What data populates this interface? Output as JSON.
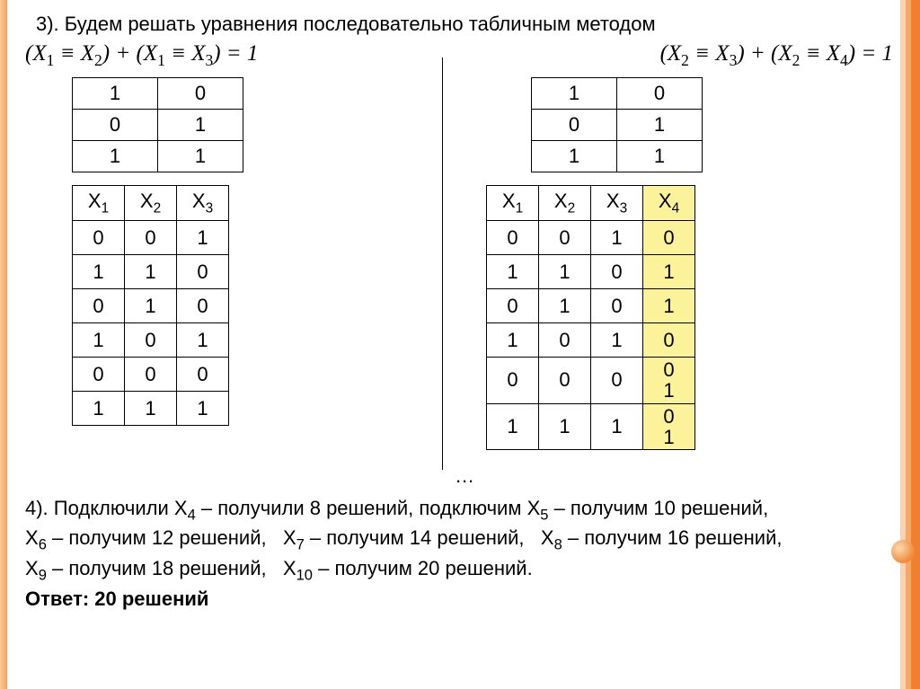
{
  "title": "3). Будем решать уравнения последовательно табличным методом",
  "formula_left": "( X₁ ≡ X₂ ) + ( X₁ ≡ X₃ ) = 1",
  "formula_right": "( X₂ ≡ X₃ ) + ( X₂ ≡ X₄ ) = 1",
  "small_table": {
    "rows": [
      [
        "1",
        "0"
      ],
      [
        "0",
        "1"
      ],
      [
        "1",
        "1"
      ]
    ]
  },
  "left_big": {
    "headers": [
      "X1",
      "X2",
      "X3"
    ],
    "rows": [
      [
        "0",
        "0",
        "1"
      ],
      [
        "1",
        "1",
        "0"
      ],
      [
        "0",
        "1",
        "0"
      ],
      [
        "1",
        "0",
        "1"
      ],
      [
        "0",
        "0",
        "0"
      ],
      [
        "1",
        "1",
        "1"
      ]
    ]
  },
  "right_big": {
    "headers": [
      "X1",
      "X2",
      "X3",
      "X4"
    ],
    "highlight_col": 3,
    "rows": [
      [
        "0",
        "0",
        "1",
        "0"
      ],
      [
        "1",
        "1",
        "0",
        "1"
      ],
      [
        "0",
        "1",
        "0",
        "1"
      ],
      [
        "1",
        "0",
        "1",
        "0"
      ],
      [
        "0",
        "0",
        "0",
        "0\n1"
      ],
      [
        "1",
        "1",
        "1",
        "0\n1"
      ]
    ]
  },
  "ellipsis": "…",
  "para1": "4). Подключили X₄ – получили 8 решений, подключим X₅ – получим 10 решений,",
  "para2": "X₆ – получим 12 решений,   X₇ – получим 14 решений,   X₈ – получим 16 решений,",
  "para3": "X₉ – получим 18 решений,   X₁₀ – получим 20 решений.",
  "answer": "Ответ: 20 решений",
  "colors": {
    "highlight": "#fcf29a",
    "stripe_light": "#f9d3b0",
    "stripe_mid": "#f5a86a",
    "stripe_dark": "#ef8030"
  }
}
